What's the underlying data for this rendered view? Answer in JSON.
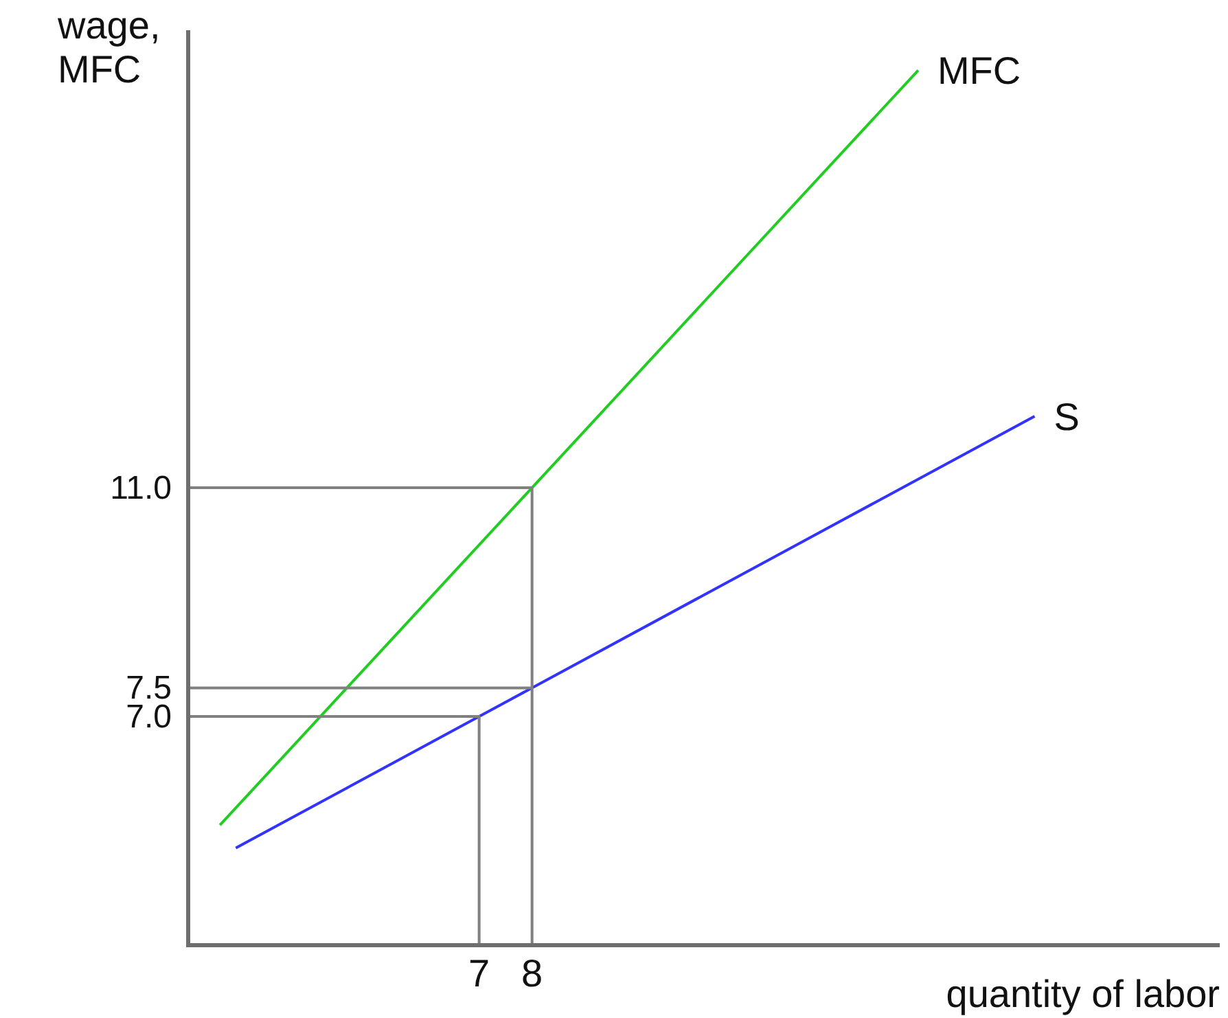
{
  "chart_data": {
    "type": "line",
    "xlabel": "quantity of labor",
    "ylabel": "wage,\nMFC",
    "xlim": [
      1.5,
      21
    ],
    "ylim": [
      3,
      19
    ],
    "xticks": [
      7,
      8
    ],
    "yticks": [
      {
        "value": 7,
        "label": "7.0"
      },
      {
        "value": 7.5,
        "label": "7.5"
      },
      {
        "value": 11,
        "label": "11.0"
      }
    ],
    "grid": false,
    "line_style": "solid",
    "series": [
      {
        "name": "MFC",
        "color": "#22cc22",
        "x": [
          2.1,
          15.3
        ],
        "values": [
          5.1,
          18.3
        ]
      },
      {
        "name": "S",
        "color": "#3333ff",
        "x": [
          2.4,
          17.5
        ],
        "values": [
          4.7,
          12.25
        ]
      },
      {
        "color": "#808080",
        "x": [
          1.5,
          8,
          8
        ],
        "values": [
          11,
          11,
          3
        ]
      },
      {
        "color": "#808080",
        "x": [
          1.5,
          8
        ],
        "values": [
          7.5,
          7.5
        ]
      },
      {
        "color": "#808080",
        "x": [
          1.5,
          7,
          7
        ],
        "values": [
          7,
          7,
          3
        ]
      }
    ]
  }
}
